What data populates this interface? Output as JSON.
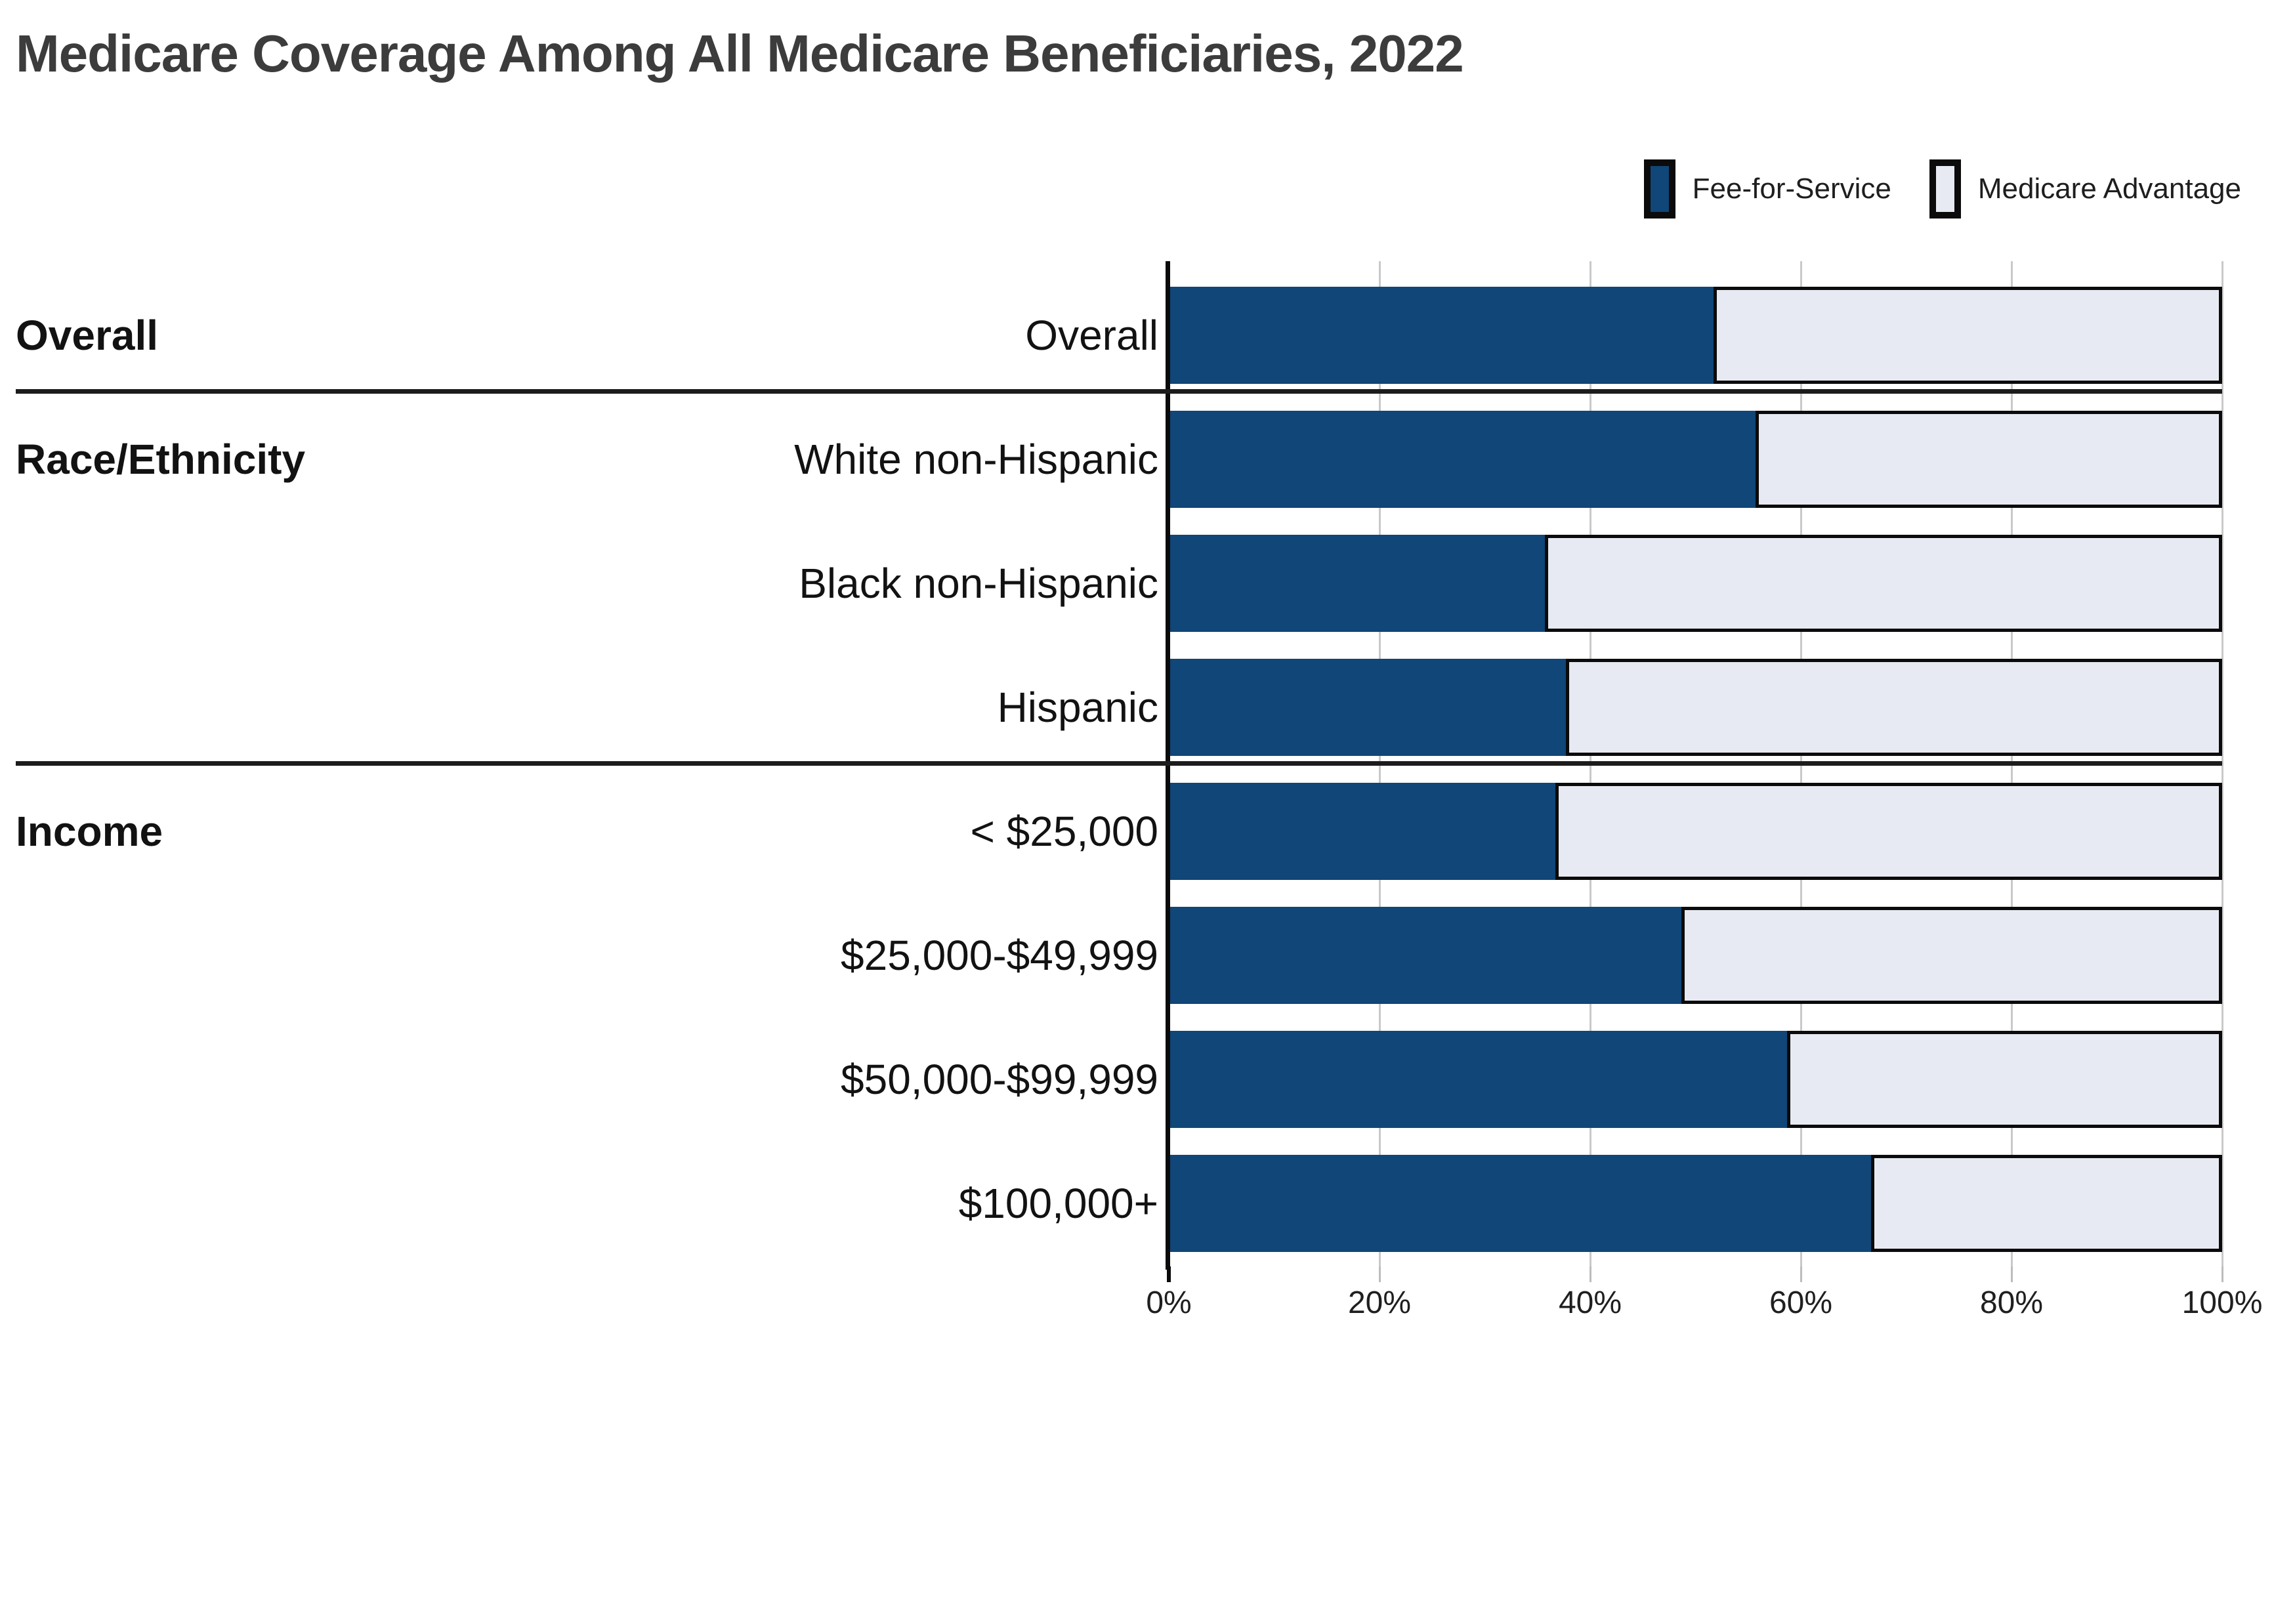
{
  "title": "Medicare Coverage Among All Medicare Beneficiaries, 2022",
  "legend": {
    "items": [
      {
        "label": "Fee-for-Service",
        "color": "#104678"
      },
      {
        "label": "Medicare Advantage",
        "color": "#e7eaf2"
      }
    ]
  },
  "colors": {
    "fee_for_service": "#104678",
    "medicare_advantage": "#e7eaf2",
    "bar_border": "#0b0b0b",
    "gridline": "#c9c9c9",
    "divider": "#1c1c1c",
    "title_text": "#3c3c3c",
    "label_text": "#121212"
  },
  "chart_data": {
    "type": "bar",
    "orientation": "horizontal",
    "stacked": true,
    "title": "Medicare Coverage Among All Medicare Beneficiaries, 2022",
    "xlabel": "",
    "ylabel": "",
    "xlim": [
      0,
      100
    ],
    "x_tick_labels": [
      "0%",
      "20%",
      "40%",
      "60%",
      "80%",
      "100%"
    ],
    "grid": true,
    "legend_position": "top-right",
    "series_names": [
      "Fee-for-Service",
      "Medicare Advantage"
    ],
    "groups": [
      {
        "label": "Overall",
        "rows": [
          {
            "label": "Overall",
            "fee_for_service": 52,
            "medicare_advantage": 48
          }
        ]
      },
      {
        "label": "Race/Ethnicity",
        "rows": [
          {
            "label": "White non-Hispanic",
            "fee_for_service": 56,
            "medicare_advantage": 44
          },
          {
            "label": "Black non-Hispanic",
            "fee_for_service": 36,
            "medicare_advantage": 64
          },
          {
            "label": "Hispanic",
            "fee_for_service": 38,
            "medicare_advantage": 62
          }
        ]
      },
      {
        "label": "Income",
        "rows": [
          {
            "label": "< $25,000",
            "fee_for_service": 37,
            "medicare_advantage": 63
          },
          {
            "label": "$25,000-$49,999",
            "fee_for_service": 49,
            "medicare_advantage": 51
          },
          {
            "label": "$50,000-$99,999",
            "fee_for_service": 59,
            "medicare_advantage": 41
          },
          {
            "label": "$100,000+",
            "fee_for_service": 67,
            "medicare_advantage": 33
          }
        ]
      }
    ]
  }
}
